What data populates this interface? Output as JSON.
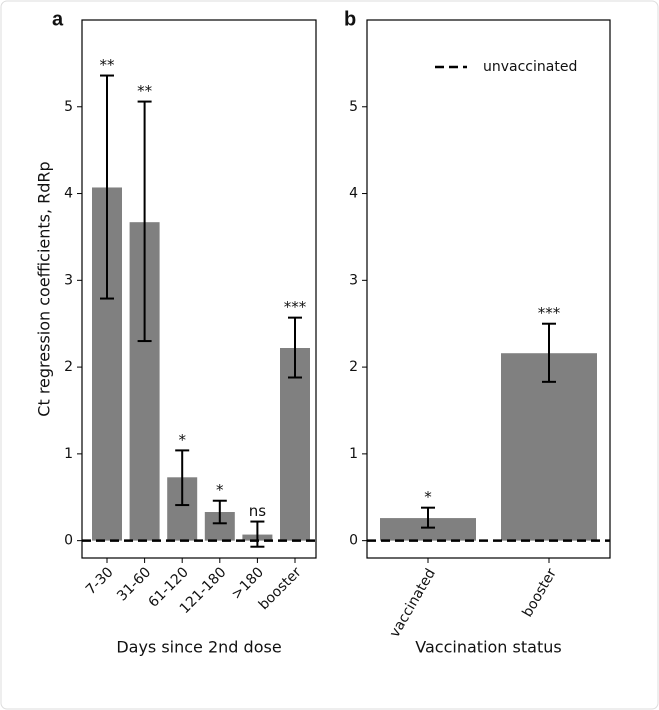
{
  "chart_data": [
    {
      "type": "bar",
      "title": "a",
      "x_label": "Days since 2nd dose",
      "y_label": "Ct regression coefficients, RdRp",
      "categories": [
        "7-30",
        "31-60",
        "61-120",
        "121-180",
        ">180",
        "booster"
      ],
      "values": [
        4.07,
        3.67,
        0.73,
        0.33,
        0.07,
        2.22
      ],
      "err_low": [
        2.79,
        2.3,
        0.41,
        0.2,
        -0.07,
        1.88
      ],
      "err_high": [
        5.36,
        5.06,
        1.04,
        0.46,
        0.22,
        2.57
      ],
      "annotations": [
        "**",
        "**",
        "*",
        "*",
        "ns",
        "***"
      ],
      "color": "#808080",
      "ylim": [
        -0.2,
        6.0
      ],
      "yticks": [
        0,
        1,
        2,
        3,
        4,
        5
      ],
      "hline": {
        "value": 0
      }
    },
    {
      "type": "bar",
      "title": "b",
      "x_label": "Vaccination status",
      "categories": [
        "vaccinated",
        "booster"
      ],
      "values": [
        0.26,
        2.16
      ],
      "err_low": [
        0.15,
        1.83
      ],
      "err_high": [
        0.38,
        2.5
      ],
      "annotations": [
        "*",
        "***"
      ],
      "color": "#808080",
      "ylim": [
        -0.2,
        6.0
      ],
      "yticks": [
        0,
        1,
        2,
        3,
        4,
        5
      ],
      "hline": {
        "value": 0,
        "name": "unvaccinated"
      },
      "legend": "upper right"
    }
  ]
}
